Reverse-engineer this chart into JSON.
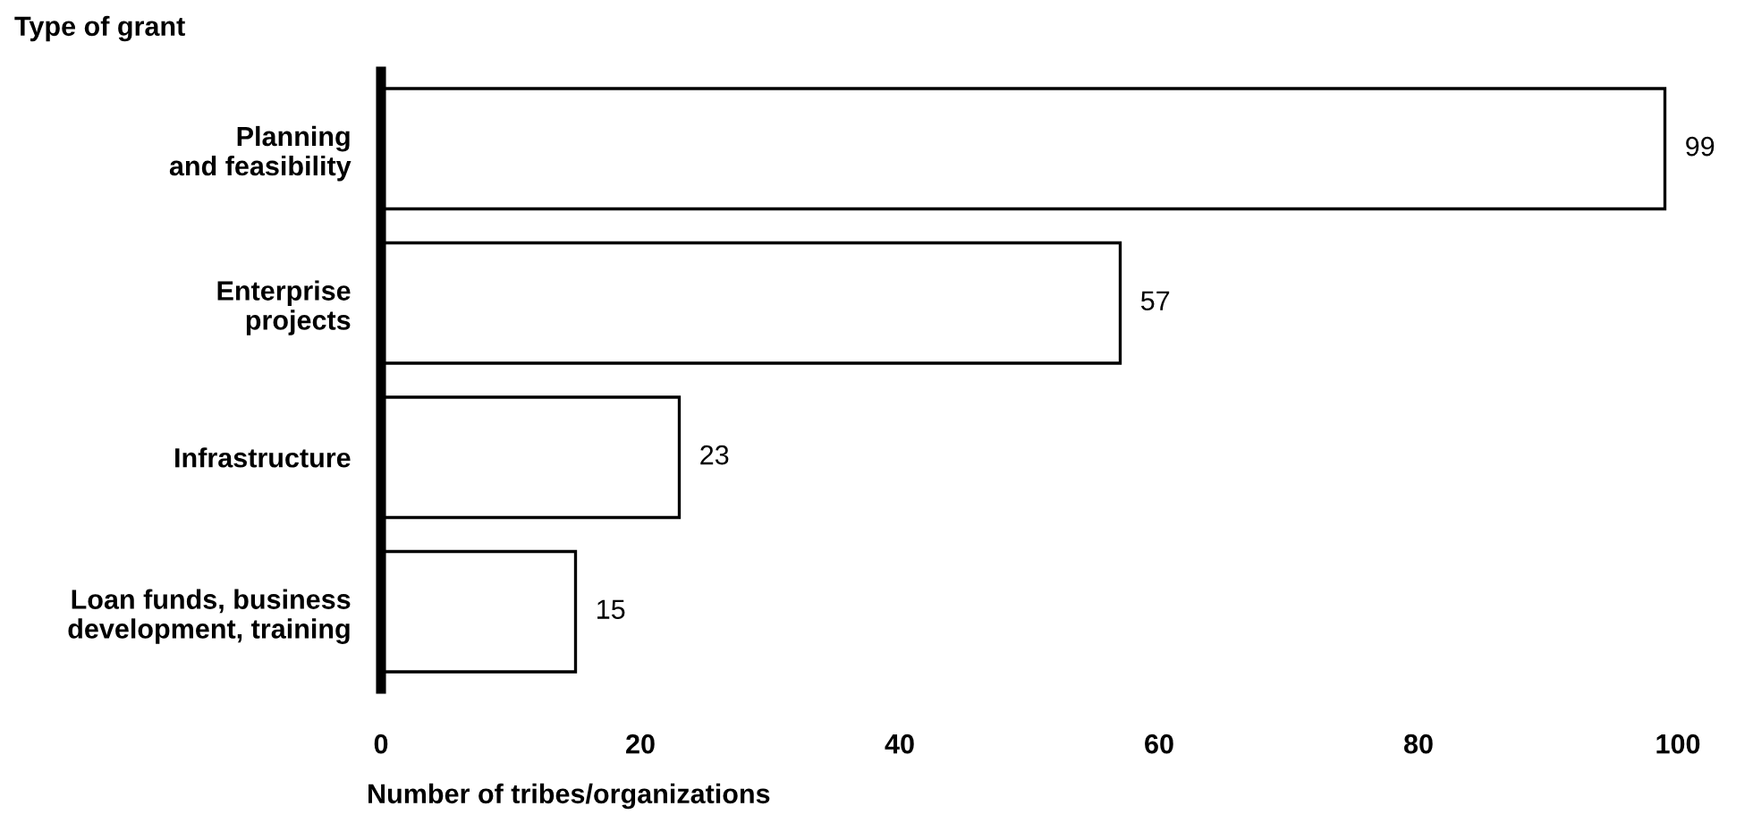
{
  "chart_data": {
    "type": "bar",
    "orientation": "horizontal",
    "ylabel": "Type of grant",
    "xlabel": "Number of tribes/organizations",
    "categories": [
      "Planning\nand feasibility",
      "Enterprise\nprojects",
      "Infrastructure",
      "Loan funds, business\ndevelopment, training"
    ],
    "values": [
      99,
      57,
      23,
      15
    ],
    "color": "#ffffff",
    "xlim": [
      0,
      100
    ],
    "xticks": [
      0,
      20,
      40,
      60,
      80,
      100
    ],
    "data_labels": true,
    "grid": false,
    "legend": false
  }
}
